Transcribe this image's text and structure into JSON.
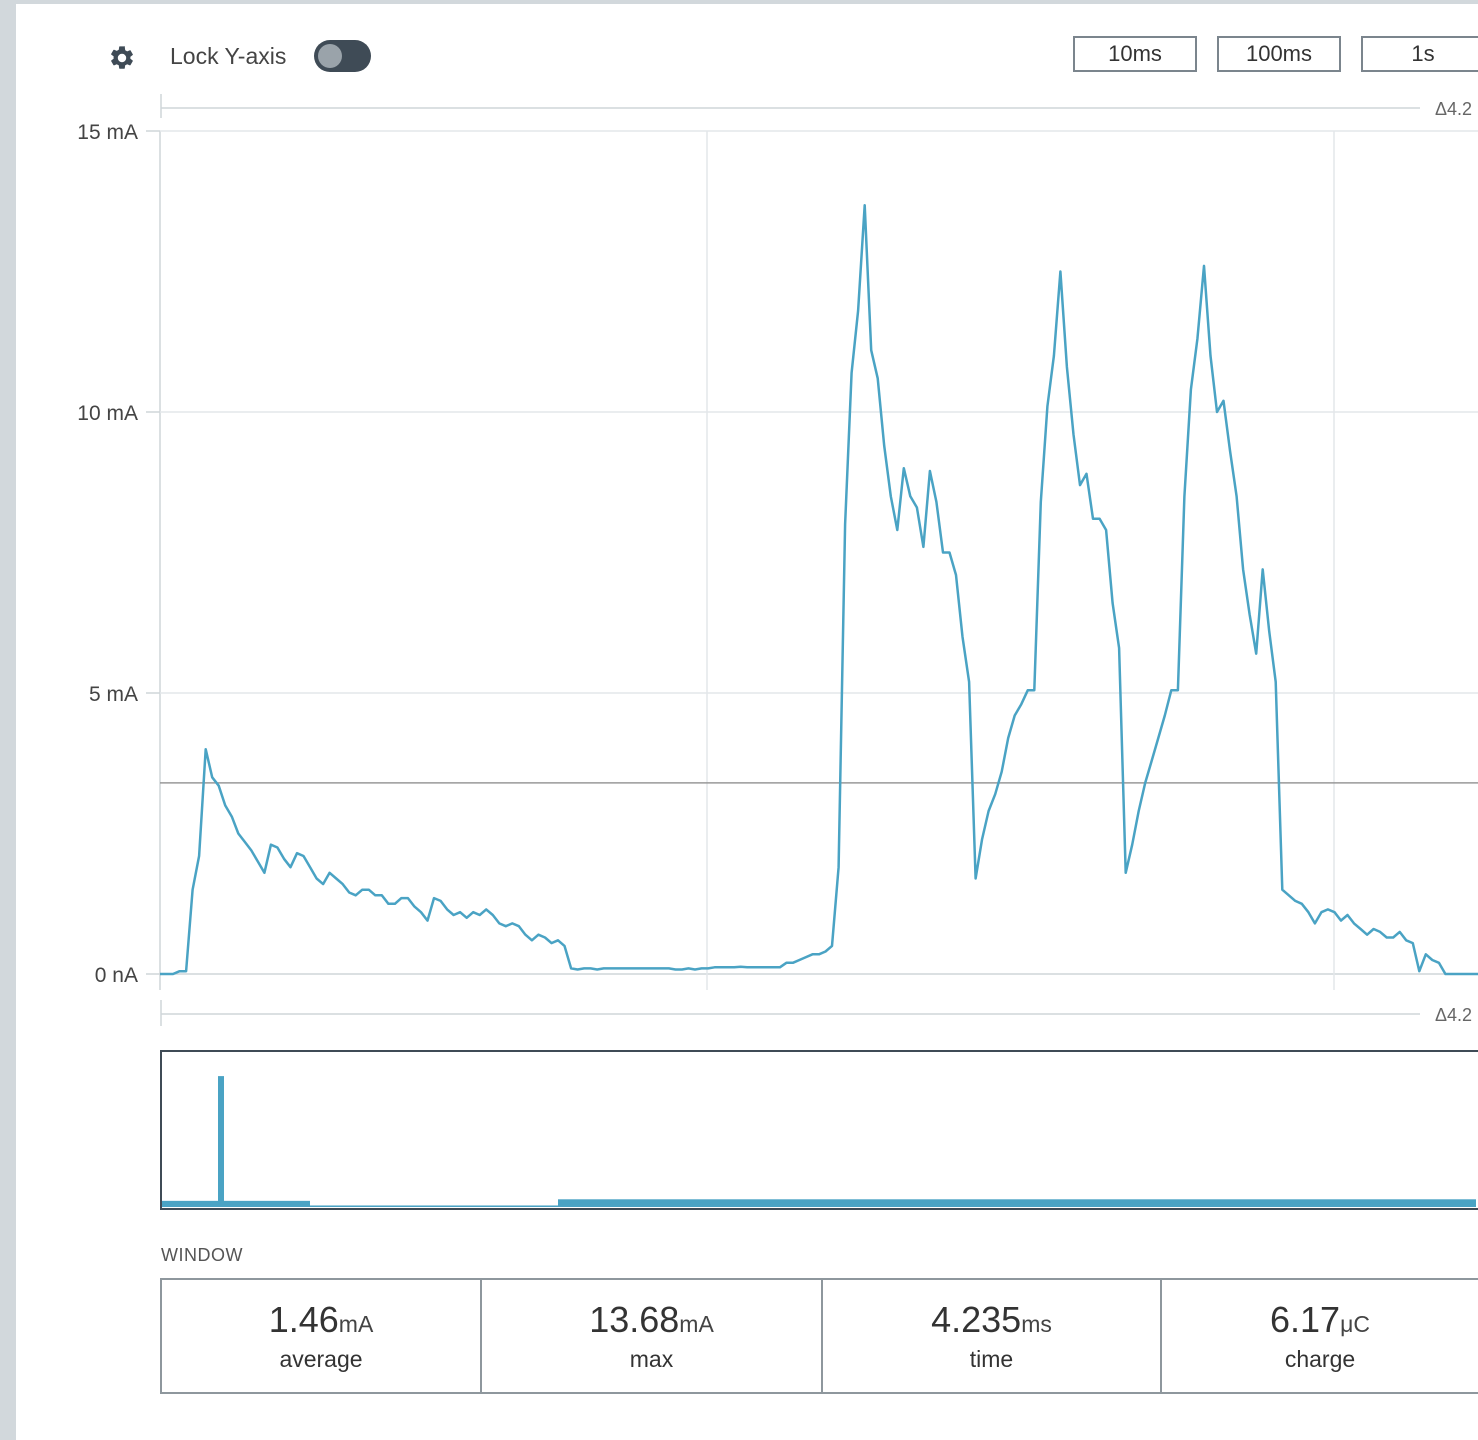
{
  "toolbar": {
    "lock_label": "Lock Y-axis",
    "lock_enabled": false,
    "window_buttons": [
      "10ms",
      "100ms",
      "1s"
    ]
  },
  "chart": {
    "delta_label_top": "Δ4.2",
    "delta_label_bottom": "Δ4.2",
    "y_ticks": [
      "15 mA",
      "10 mA",
      "5 mA",
      "0 nA"
    ],
    "line_color": "#4aa3c4"
  },
  "chart_data": {
    "type": "line",
    "ylabel": "",
    "ylim": [
      0,
      15
    ],
    "y_ticks": [
      0,
      5,
      10,
      15
    ],
    "unit": "mA",
    "grid": true,
    "average_line": 3.4,
    "values": [
      0,
      0,
      0,
      0.05,
      0.05,
      1.5,
      2.1,
      4.0,
      3.5,
      3.35,
      3.0,
      2.8,
      2.5,
      2.35,
      2.2,
      2.0,
      1.8,
      2.3,
      2.25,
      2.05,
      1.9,
      2.15,
      2.1,
      1.9,
      1.7,
      1.6,
      1.8,
      1.7,
      1.6,
      1.45,
      1.4,
      1.5,
      1.5,
      1.4,
      1.4,
      1.25,
      1.25,
      1.35,
      1.35,
      1.2,
      1.1,
      0.95,
      1.35,
      1.3,
      1.15,
      1.05,
      1.1,
      1.0,
      1.1,
      1.05,
      1.15,
      1.05,
      0.9,
      0.85,
      0.9,
      0.85,
      0.7,
      0.6,
      0.7,
      0.65,
      0.55,
      0.6,
      0.5,
      0.1,
      0.08,
      0.1,
      0.1,
      0.08,
      0.1,
      0.1,
      0.1,
      0.1,
      0.1,
      0.1,
      0.1,
      0.1,
      0.1,
      0.1,
      0.1,
      0.08,
      0.08,
      0.1,
      0.08,
      0.1,
      0.1,
      0.12,
      0.12,
      0.12,
      0.12,
      0.13,
      0.12,
      0.12,
      0.12,
      0.12,
      0.12,
      0.12,
      0.2,
      0.2,
      0.25,
      0.3,
      0.35,
      0.35,
      0.4,
      0.5,
      1.9,
      8.0,
      10.7,
      11.8,
      13.68,
      11.1,
      10.6,
      9.4,
      8.5,
      7.9,
      9.0,
      8.5,
      8.3,
      7.6,
      8.95,
      8.4,
      7.5,
      7.5,
      7.1,
      6.0,
      5.2,
      1.7,
      2.4,
      2.9,
      3.2,
      3.6,
      4.2,
      4.6,
      4.8,
      5.05,
      5.05,
      8.4,
      10.1,
      11.0,
      12.5,
      10.8,
      9.6,
      8.7,
      8.9,
      8.1,
      8.1,
      7.9,
      6.6,
      5.8,
      1.8,
      2.3,
      2.9,
      3.4,
      3.8,
      4.2,
      4.6,
      5.05,
      5.05,
      8.5,
      10.4,
      11.3,
      12.6,
      11.0,
      10.0,
      10.2,
      9.3,
      8.5,
      7.2,
      6.4,
      5.7,
      7.2,
      6.1,
      5.2,
      1.5,
      1.4,
      1.3,
      1.25,
      1.1,
      0.9,
      1.1,
      1.15,
      1.1,
      0.95,
      1.05,
      0.9,
      0.8,
      0.7,
      0.8,
      0.75,
      0.65,
      0.65,
      0.75,
      0.6,
      0.55,
      0.05,
      0.35,
      0.25,
      0.2,
      0.0,
      0.0,
      0.0,
      0.0,
      0.0,
      0.0
    ],
    "minimap": {
      "spike": 0.85,
      "baseline_start": 0.04,
      "baseline_mid": 0.01,
      "baseline_end": 0.05
    }
  },
  "window": {
    "title": "WINDOW",
    "stats": [
      {
        "value": "1.46",
        "unit": "mA",
        "label": "average"
      },
      {
        "value": "13.68",
        "unit": "mA",
        "label": "max"
      },
      {
        "value": "4.235",
        "unit": "ms",
        "label": "time"
      },
      {
        "value": "6.17",
        "unit": "μC",
        "label": "charge"
      }
    ]
  }
}
